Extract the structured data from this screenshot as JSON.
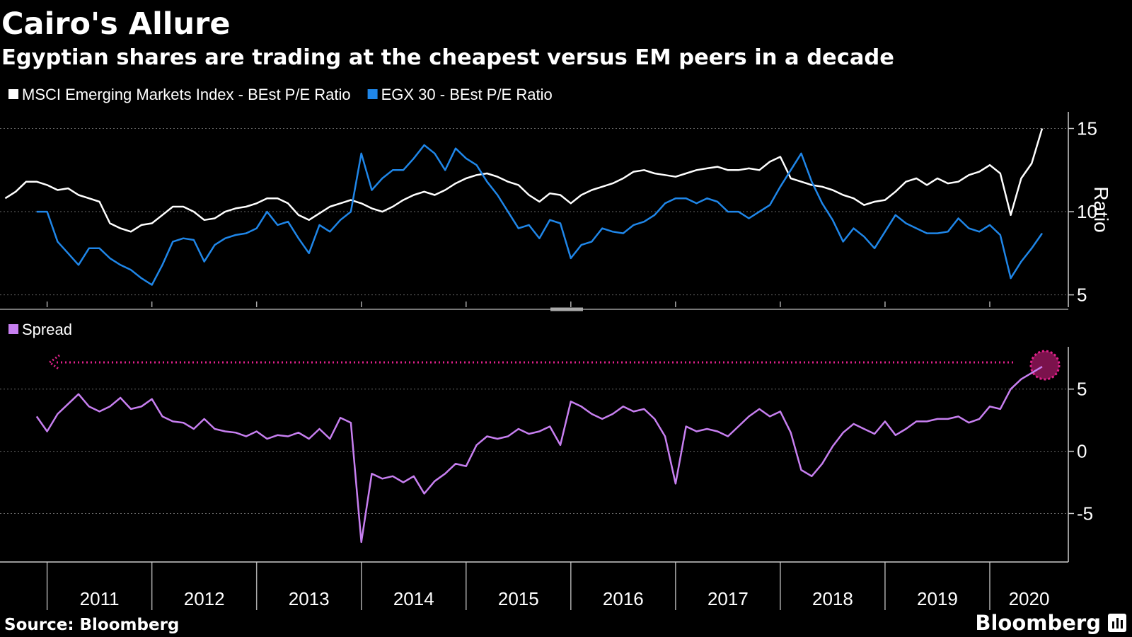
{
  "source": "Source: Bloomberg",
  "logo": "Bloomberg",
  "chart_data": [
    {
      "type": "line",
      "title": "Cairo's Allure",
      "subtitle": "Egyptian shares are trading at the cheapest versus EM peers in a decade",
      "ylabel": "Ratio",
      "x": [
        2010.6,
        2010.7,
        2010.8,
        2010.9,
        2011.0,
        2011.1,
        2011.2,
        2011.3,
        2011.4,
        2011.5,
        2011.6,
        2011.7,
        2011.8,
        2011.9,
        2012.0,
        2012.1,
        2012.2,
        2012.3,
        2012.4,
        2012.5,
        2012.6,
        2012.7,
        2012.8,
        2012.9,
        2013.0,
        2013.1,
        2013.2,
        2013.3,
        2013.4,
        2013.5,
        2013.6,
        2013.7,
        2013.8,
        2013.9,
        2014.0,
        2014.1,
        2014.2,
        2014.3,
        2014.4,
        2014.5,
        2014.6,
        2014.7,
        2014.8,
        2014.9,
        2015.0,
        2015.1,
        2015.2,
        2015.3,
        2015.4,
        2015.5,
        2015.6,
        2015.7,
        2015.8,
        2015.9,
        2016.0,
        2016.1,
        2016.2,
        2016.3,
        2016.4,
        2016.5,
        2016.6,
        2016.7,
        2016.8,
        2016.9,
        2017.0,
        2017.1,
        2017.2,
        2017.3,
        2017.4,
        2017.5,
        2017.6,
        2017.7,
        2017.8,
        2017.9,
        2018.0,
        2018.1,
        2018.2,
        2018.3,
        2018.4,
        2018.5,
        2018.6,
        2018.7,
        2018.8,
        2018.9,
        2019.0,
        2019.1,
        2019.2,
        2019.3,
        2019.4,
        2019.5,
        2019.6,
        2019.7,
        2019.8,
        2019.9,
        2020.0,
        2020.1,
        2020.2,
        2020.3,
        2020.4,
        2020.5
      ],
      "xlim": [
        2010.55,
        2020.75
      ],
      "xticks": [
        2011,
        2012,
        2013,
        2014,
        2015,
        2016,
        2017,
        2018,
        2019,
        2020
      ],
      "ylim": [
        4.26,
        16
      ],
      "yticks": [
        5,
        10,
        15
      ],
      "grid": true,
      "series": [
        {
          "name": "MSCI Emerging Markets Index - BEst P/E Ratio",
          "color": "#ffffff",
          "values": [
            10.8,
            11.2,
            11.8,
            11.8,
            11.6,
            11.3,
            11.4,
            11.0,
            10.8,
            10.6,
            9.3,
            9.0,
            8.8,
            9.2,
            9.3,
            9.8,
            10.3,
            10.3,
            10.0,
            9.5,
            9.6,
            10.0,
            10.2,
            10.3,
            10.5,
            10.8,
            10.8,
            10.5,
            9.8,
            9.5,
            9.9,
            10.3,
            10.5,
            10.7,
            10.5,
            10.2,
            10.0,
            10.3,
            10.7,
            11.0,
            11.2,
            11.0,
            11.3,
            11.7,
            12.0,
            12.2,
            12.3,
            12.1,
            11.8,
            11.6,
            11.0,
            10.6,
            11.1,
            11.0,
            10.5,
            11.0,
            11.3,
            11.5,
            11.7,
            12.0,
            12.4,
            12.5,
            12.3,
            12.2,
            12.1,
            12.3,
            12.5,
            12.6,
            12.7,
            12.5,
            12.5,
            12.6,
            12.5,
            13.0,
            13.3,
            12.0,
            11.8,
            11.6,
            11.5,
            11.3,
            11.0,
            10.8,
            10.4,
            10.6,
            10.7,
            11.2,
            11.8,
            12.0,
            11.6,
            12.0,
            11.7,
            11.8,
            12.2,
            12.4,
            12.8,
            12.3,
            9.8,
            12.0,
            12.9,
            15.0
          ]
        },
        {
          "name": "EGX 30 - BEst P/E Ratio",
          "color": "#1f86e8",
          "values": [
            null,
            null,
            null,
            10.0,
            10.0,
            8.2,
            7.5,
            6.8,
            7.8,
            7.8,
            7.2,
            6.8,
            6.5,
            6.0,
            5.6,
            6.8,
            8.2,
            8.4,
            8.3,
            7.0,
            8.0,
            8.4,
            8.6,
            8.7,
            9.0,
            10.0,
            9.2,
            9.4,
            8.4,
            7.5,
            9.2,
            8.8,
            9.5,
            10.0,
            13.5,
            11.3,
            12.0,
            12.5,
            12.5,
            13.2,
            14.0,
            13.5,
            12.5,
            13.8,
            13.2,
            12.8,
            11.8,
            11.0,
            10.0,
            9.0,
            9.2,
            8.4,
            9.5,
            9.3,
            7.2,
            8.0,
            8.2,
            9.0,
            8.8,
            8.7,
            9.2,
            9.4,
            9.8,
            10.5,
            10.8,
            10.8,
            10.5,
            10.8,
            10.6,
            10.0,
            10.0,
            9.6,
            10.0,
            10.4,
            11.5,
            12.5,
            13.5,
            11.8,
            10.5,
            9.5,
            8.2,
            9.0,
            8.5,
            7.8,
            8.8,
            9.8,
            9.3,
            9.0,
            8.7,
            8.7,
            8.8,
            9.6,
            9.0,
            8.8,
            9.2,
            8.6,
            6.0,
            7.0,
            7.8,
            8.7
          ]
        }
      ]
    },
    {
      "type": "line",
      "x": [
        2010.6,
        2010.7,
        2010.8,
        2010.9,
        2011.0,
        2011.1,
        2011.2,
        2011.3,
        2011.4,
        2011.5,
        2011.6,
        2011.7,
        2011.8,
        2011.9,
        2012.0,
        2012.1,
        2012.2,
        2012.3,
        2012.4,
        2012.5,
        2012.6,
        2012.7,
        2012.8,
        2012.9,
        2013.0,
        2013.1,
        2013.2,
        2013.3,
        2013.4,
        2013.5,
        2013.6,
        2013.7,
        2013.8,
        2013.9,
        2014.0,
        2014.1,
        2014.2,
        2014.3,
        2014.4,
        2014.5,
        2014.6,
        2014.7,
        2014.8,
        2014.9,
        2015.0,
        2015.1,
        2015.2,
        2015.3,
        2015.4,
        2015.5,
        2015.6,
        2015.7,
        2015.8,
        2015.9,
        2016.0,
        2016.1,
        2016.2,
        2016.3,
        2016.4,
        2016.5,
        2016.6,
        2016.7,
        2016.8,
        2016.9,
        2017.0,
        2017.1,
        2017.2,
        2017.3,
        2017.4,
        2017.5,
        2017.6,
        2017.7,
        2017.8,
        2017.9,
        2018.0,
        2018.1,
        2018.2,
        2018.3,
        2018.4,
        2018.5,
        2018.6,
        2018.7,
        2018.8,
        2018.9,
        2019.0,
        2019.1,
        2019.2,
        2019.3,
        2019.4,
        2019.5,
        2019.6,
        2019.7,
        2019.8,
        2019.9,
        2020.0,
        2020.1,
        2020.2,
        2020.3,
        2020.4,
        2020.5
      ],
      "xlim": [
        2010.55,
        2020.75
      ],
      "xticks": [
        2011,
        2012,
        2013,
        2014,
        2015,
        2016,
        2017,
        2018,
        2019,
        2020
      ],
      "ylim": [
        -8.9,
        8.4
      ],
      "yticks": [
        -5,
        0,
        5
      ],
      "grid": true,
      "series": [
        {
          "name": "Spread",
          "color": "#c77ff0",
          "values": [
            null,
            null,
            null,
            2.8,
            1.6,
            3.0,
            3.8,
            4.6,
            3.6,
            3.2,
            3.6,
            4.3,
            3.4,
            3.6,
            4.2,
            2.8,
            2.4,
            2.3,
            1.8,
            2.6,
            1.8,
            1.6,
            1.5,
            1.2,
            1.6,
            1.0,
            1.3,
            1.2,
            1.5,
            1.0,
            1.8,
            1.0,
            2.7,
            2.3,
            -7.3,
            -1.8,
            -2.2,
            -2.0,
            -2.5,
            -2.0,
            -3.4,
            -2.4,
            -1.8,
            -1.0,
            -1.2,
            0.5,
            1.2,
            1.0,
            1.2,
            1.8,
            1.4,
            1.6,
            2.0,
            0.5,
            4.0,
            3.6,
            3.0,
            2.6,
            3.0,
            3.6,
            3.2,
            3.4,
            2.6,
            1.2,
            -2.6,
            2.0,
            1.6,
            1.8,
            1.6,
            1.2,
            2.0,
            2.8,
            3.4,
            2.8,
            3.2,
            1.5,
            -1.5,
            -2.0,
            -1.0,
            0.4,
            1.5,
            2.2,
            1.8,
            1.4,
            2.4,
            1.3,
            1.8,
            2.4,
            2.4,
            2.6,
            2.6,
            2.8,
            2.3,
            2.6,
            3.6,
            3.4,
            5.0,
            5.8,
            6.3,
            6.8
          ]
        }
      ]
    }
  ]
}
